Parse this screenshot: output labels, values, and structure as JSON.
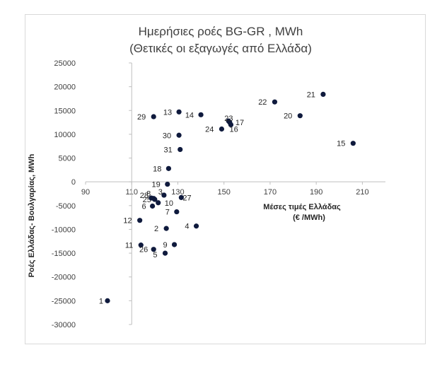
{
  "chart_data": {
    "type": "scatter",
    "title": "Ημερήσιες ροές BG-GR , MWh",
    "subtitle": "(Θετικές οι εξαγωγές από Ελλάδα)",
    "xlabel_line1": "Μέσες τιμές Ελλάδας",
    "xlabel_line2": "(€ /MWh)",
    "ylabel": "Ροές Ελλάδας- Βουλγαρίας, MWh",
    "xlim": [
      90,
      220
    ],
    "ylim": [
      -30000,
      25000
    ],
    "x_ticks": [
      90,
      110,
      130,
      150,
      170,
      190,
      210
    ],
    "y_ticks": [
      25000,
      20000,
      15000,
      10000,
      5000,
      0,
      -5000,
      -10000,
      -15000,
      -20000,
      -25000,
      -30000
    ],
    "grid": false,
    "marker_color": "#0f1a3d",
    "points": [
      {
        "label": "1",
        "x": 99.5,
        "y": -25000
      },
      {
        "label": "2",
        "x": 125,
        "y": -9800
      },
      {
        "label": "3",
        "x": 124,
        "y": -2800
      },
      {
        "label": "4",
        "x": 138,
        "y": -9300
      },
      {
        "label": "5",
        "x": 124.5,
        "y": -15000
      },
      {
        "label": "6",
        "x": 119,
        "y": -5100
      },
      {
        "label": "7",
        "x": 129.5,
        "y": -6300
      },
      {
        "label": "8",
        "x": 119.5,
        "y": -3500
      },
      {
        "label": "9",
        "x": 128.5,
        "y": -13200
      },
      {
        "label": "10",
        "x": 121.5,
        "y": -4400
      },
      {
        "label": "11",
        "x": 114,
        "y": -13300
      },
      {
        "label": "12",
        "x": 113.5,
        "y": -8100
      },
      {
        "label": "13",
        "x": 130.5,
        "y": 14700
      },
      {
        "label": "14",
        "x": 140,
        "y": 14100
      },
      {
        "label": "15",
        "x": 206,
        "y": 8100
      },
      {
        "label": "16",
        "x": 153,
        "y": 12000
      },
      {
        "label": "17",
        "x": 152.5,
        "y": 12500
      },
      {
        "label": "18",
        "x": 126,
        "y": 2800
      },
      {
        "label": "19",
        "x": 125.5,
        "y": -500
      },
      {
        "label": "20",
        "x": 183,
        "y": 13900
      },
      {
        "label": "21",
        "x": 193,
        "y": 18400
      },
      {
        "label": "22",
        "x": 172,
        "y": 16800
      },
      {
        "label": "23",
        "x": 152,
        "y": 12800
      },
      {
        "label": "24",
        "x": 149,
        "y": 11100
      },
      {
        "label": "25",
        "x": 120,
        "y": -3700
      },
      {
        "label": "26",
        "x": 119.5,
        "y": -14200
      },
      {
        "label": "27",
        "x": 131.5,
        "y": -3300
      },
      {
        "label": "28",
        "x": 118.5,
        "y": -3400
      },
      {
        "label": "29",
        "x": 119.5,
        "y": 13700
      },
      {
        "label": "30",
        "x": 130.5,
        "y": 9800
      },
      {
        "label": "31",
        "x": 131,
        "y": 6800
      }
    ]
  }
}
